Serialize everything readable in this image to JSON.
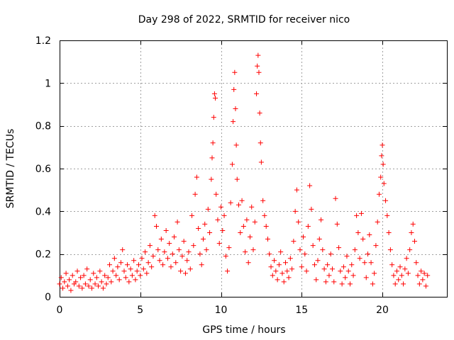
{
  "chart_data": {
    "type": "scatter",
    "title": "Day 298 of 2022, SRMTID for receiver nico",
    "xlabel": "GPS time / hours",
    "ylabel": "SRMTID / TECUs",
    "xlim": [
      0,
      24
    ],
    "ylim": [
      0,
      1.2
    ],
    "x_ticks": [
      0,
      5,
      10,
      15,
      20
    ],
    "x_tick_labels": [
      "0",
      "5",
      "10",
      "15",
      "20"
    ],
    "y_ticks": [
      0,
      0.2,
      0.4,
      0.6,
      0.8,
      1,
      1.2
    ],
    "y_tick_labels": [
      "0",
      "0.2",
      "0.4",
      "0.6",
      "0.8",
      "1",
      "1.2"
    ],
    "grid": true,
    "marker": "plus",
    "color": "#ff0000",
    "series": [
      {
        "name": "SRMTID",
        "points": [
          [
            0.0,
            0.06
          ],
          [
            0.1,
            0.09
          ],
          [
            0.2,
            0.04
          ],
          [
            0.3,
            0.07
          ],
          [
            0.4,
            0.11
          ],
          [
            0.5,
            0.05
          ],
          [
            0.6,
            0.08
          ],
          [
            0.7,
            0.03
          ],
          [
            0.8,
            0.1
          ],
          [
            0.9,
            0.06
          ],
          [
            1.0,
            0.07
          ],
          [
            1.1,
            0.12
          ],
          [
            1.2,
            0.05
          ],
          [
            1.3,
            0.09
          ],
          [
            1.4,
            0.04
          ],
          [
            1.5,
            0.1
          ],
          [
            1.6,
            0.06
          ],
          [
            1.7,
            0.13
          ],
          [
            1.8,
            0.05
          ],
          [
            1.9,
            0.08
          ],
          [
            2.0,
            0.04
          ],
          [
            2.1,
            0.11
          ],
          [
            2.2,
            0.06
          ],
          [
            2.3,
            0.09
          ],
          [
            2.4,
            0.05
          ],
          [
            2.5,
            0.12
          ],
          [
            2.6,
            0.07
          ],
          [
            2.7,
            0.04
          ],
          [
            2.8,
            0.1
          ],
          [
            2.9,
            0.06
          ],
          [
            3.0,
            0.09
          ],
          [
            3.1,
            0.15
          ],
          [
            3.2,
            0.07
          ],
          [
            3.3,
            0.12
          ],
          [
            3.4,
            0.18
          ],
          [
            3.5,
            0.1
          ],
          [
            3.6,
            0.14
          ],
          [
            3.7,
            0.08
          ],
          [
            3.8,
            0.16
          ],
          [
            3.9,
            0.22
          ],
          [
            4.0,
            0.12
          ],
          [
            4.1,
            0.09
          ],
          [
            4.2,
            0.15
          ],
          [
            4.3,
            0.07
          ],
          [
            4.4,
            0.13
          ],
          [
            4.5,
            0.1
          ],
          [
            4.6,
            0.17
          ],
          [
            4.7,
            0.08
          ],
          [
            4.8,
            0.12
          ],
          [
            4.9,
            0.15
          ],
          [
            5.0,
            0.1
          ],
          [
            5.1,
            0.18
          ],
          [
            5.2,
            0.13
          ],
          [
            5.3,
            0.21
          ],
          [
            5.4,
            0.11
          ],
          [
            5.5,
            0.16
          ],
          [
            5.6,
            0.24
          ],
          [
            5.7,
            0.14
          ],
          [
            5.8,
            0.19
          ],
          [
            5.9,
            0.38
          ],
          [
            6.0,
            0.33
          ],
          [
            6.1,
            0.22
          ],
          [
            6.2,
            0.17
          ],
          [
            6.3,
            0.27
          ],
          [
            6.4,
            0.15
          ],
          [
            6.5,
            0.21
          ],
          [
            6.6,
            0.31
          ],
          [
            6.7,
            0.18
          ],
          [
            6.8,
            0.25
          ],
          [
            6.9,
            0.14
          ],
          [
            7.0,
            0.2
          ],
          [
            7.1,
            0.28
          ],
          [
            7.2,
            0.16
          ],
          [
            7.3,
            0.35
          ],
          [
            7.4,
            0.22
          ],
          [
            7.5,
            0.12
          ],
          [
            7.6,
            0.19
          ],
          [
            7.7,
            0.26
          ],
          [
            7.8,
            0.11
          ],
          [
            7.9,
            0.17
          ],
          [
            8.0,
            0.21
          ],
          [
            8.1,
            0.13
          ],
          [
            8.2,
            0.38
          ],
          [
            8.3,
            0.24
          ],
          [
            8.4,
            0.48
          ],
          [
            8.5,
            0.56
          ],
          [
            8.6,
            0.32
          ],
          [
            8.7,
            0.2
          ],
          [
            8.8,
            0.15
          ],
          [
            8.9,
            0.27
          ],
          [
            9.0,
            0.34
          ],
          [
            9.1,
            0.22
          ],
          [
            9.2,
            0.41
          ],
          [
            9.3,
            0.3
          ],
          [
            9.4,
            0.55
          ],
          [
            9.45,
            0.65
          ],
          [
            9.5,
            0.72
          ],
          [
            9.55,
            0.84
          ],
          [
            9.6,
            0.95
          ],
          [
            9.65,
            0.93
          ],
          [
            9.7,
            0.48
          ],
          [
            9.8,
            0.36
          ],
          [
            9.9,
            0.25
          ],
          [
            10.0,
            0.42
          ],
          [
            10.1,
            0.31
          ],
          [
            10.2,
            0.38
          ],
          [
            10.3,
            0.19
          ],
          [
            10.4,
            0.12
          ],
          [
            10.5,
            0.23
          ],
          [
            10.6,
            0.44
          ],
          [
            10.7,
            0.62
          ],
          [
            10.75,
            0.82
          ],
          [
            10.8,
            0.97
          ],
          [
            10.85,
            1.05
          ],
          [
            10.9,
            0.88
          ],
          [
            10.95,
            0.71
          ],
          [
            11.0,
            0.55
          ],
          [
            11.1,
            0.43
          ],
          [
            11.2,
            0.3
          ],
          [
            11.3,
            0.45
          ],
          [
            11.4,
            0.33
          ],
          [
            11.5,
            0.21
          ],
          [
            11.6,
            0.36
          ],
          [
            11.7,
            0.16
          ],
          [
            11.8,
            0.28
          ],
          [
            11.9,
            0.42
          ],
          [
            12.0,
            0.22
          ],
          [
            12.1,
            0.35
          ],
          [
            12.2,
            0.95
          ],
          [
            12.25,
            1.08
          ],
          [
            12.3,
            1.13
          ],
          [
            12.35,
            1.05
          ],
          [
            12.4,
            0.86
          ],
          [
            12.45,
            0.72
          ],
          [
            12.5,
            0.63
          ],
          [
            12.6,
            0.45
          ],
          [
            12.7,
            0.38
          ],
          [
            12.8,
            0.33
          ],
          [
            12.9,
            0.27
          ],
          [
            13.0,
            0.2
          ],
          [
            13.1,
            0.14
          ],
          [
            13.2,
            0.1
          ],
          [
            13.3,
            0.17
          ],
          [
            13.4,
            0.12
          ],
          [
            13.5,
            0.08
          ],
          [
            13.6,
            0.15
          ],
          [
            13.7,
            0.21
          ],
          [
            13.8,
            0.11
          ],
          [
            13.9,
            0.07
          ],
          [
            14.0,
            0.16
          ],
          [
            14.1,
            0.12
          ],
          [
            14.2,
            0.09
          ],
          [
            14.3,
            0.18
          ],
          [
            14.4,
            0.13
          ],
          [
            14.5,
            0.26
          ],
          [
            14.6,
            0.4
          ],
          [
            14.7,
            0.5
          ],
          [
            14.8,
            0.35
          ],
          [
            14.9,
            0.22
          ],
          [
            15.0,
            0.14
          ],
          [
            15.1,
            0.28
          ],
          [
            15.2,
            0.2
          ],
          [
            15.3,
            0.12
          ],
          [
            15.4,
            0.33
          ],
          [
            15.5,
            0.52
          ],
          [
            15.6,
            0.41
          ],
          [
            15.7,
            0.24
          ],
          [
            15.8,
            0.15
          ],
          [
            15.9,
            0.08
          ],
          [
            16.0,
            0.17
          ],
          [
            16.1,
            0.27
          ],
          [
            16.2,
            0.36
          ],
          [
            16.3,
            0.22
          ],
          [
            16.4,
            0.13
          ],
          [
            16.5,
            0.07
          ],
          [
            16.6,
            0.15
          ],
          [
            16.7,
            0.1
          ],
          [
            16.8,
            0.2
          ],
          [
            16.9,
            0.13
          ],
          [
            17.0,
            0.07
          ],
          [
            17.1,
            0.46
          ],
          [
            17.2,
            0.34
          ],
          [
            17.3,
            0.23
          ],
          [
            17.4,
            0.12
          ],
          [
            17.5,
            0.06
          ],
          [
            17.6,
            0.14
          ],
          [
            17.7,
            0.09
          ],
          [
            17.8,
            0.19
          ],
          [
            17.9,
            0.12
          ],
          [
            18.0,
            0.06
          ],
          [
            18.1,
            0.15
          ],
          [
            18.2,
            0.1
          ],
          [
            18.3,
            0.22
          ],
          [
            18.4,
            0.38
          ],
          [
            18.5,
            0.3
          ],
          [
            18.6,
            0.18
          ],
          [
            18.7,
            0.39
          ],
          [
            18.8,
            0.27
          ],
          [
            18.9,
            0.16
          ],
          [
            19.0,
            0.09
          ],
          [
            19.1,
            0.2
          ],
          [
            19.2,
            0.29
          ],
          [
            19.3,
            0.16
          ],
          [
            19.4,
            0.06
          ],
          [
            19.5,
            0.11
          ],
          [
            19.6,
            0.24
          ],
          [
            19.7,
            0.35
          ],
          [
            19.8,
            0.48
          ],
          [
            19.9,
            0.56
          ],
          [
            19.95,
            0.66
          ],
          [
            20.0,
            0.71
          ],
          [
            20.05,
            0.62
          ],
          [
            20.1,
            0.53
          ],
          [
            20.2,
            0.45
          ],
          [
            20.3,
            0.38
          ],
          [
            20.4,
            0.3
          ],
          [
            20.5,
            0.22
          ],
          [
            20.6,
            0.15
          ],
          [
            20.7,
            0.1
          ],
          [
            20.8,
            0.06
          ],
          [
            20.9,
            0.12
          ],
          [
            21.0,
            0.08
          ],
          [
            21.1,
            0.14
          ],
          [
            21.2,
            0.1
          ],
          [
            21.3,
            0.06
          ],
          [
            21.4,
            0.13
          ],
          [
            21.5,
            0.18
          ],
          [
            21.6,
            0.11
          ],
          [
            21.7,
            0.22
          ],
          [
            21.8,
            0.3
          ],
          [
            21.9,
            0.34
          ],
          [
            22.0,
            0.26
          ],
          [
            22.1,
            0.16
          ],
          [
            22.2,
            0.1
          ],
          [
            22.3,
            0.06
          ],
          [
            22.4,
            0.12
          ],
          [
            22.5,
            0.08
          ],
          [
            22.6,
            0.11
          ],
          [
            22.7,
            0.05
          ],
          [
            22.8,
            0.1
          ]
        ]
      }
    ]
  }
}
